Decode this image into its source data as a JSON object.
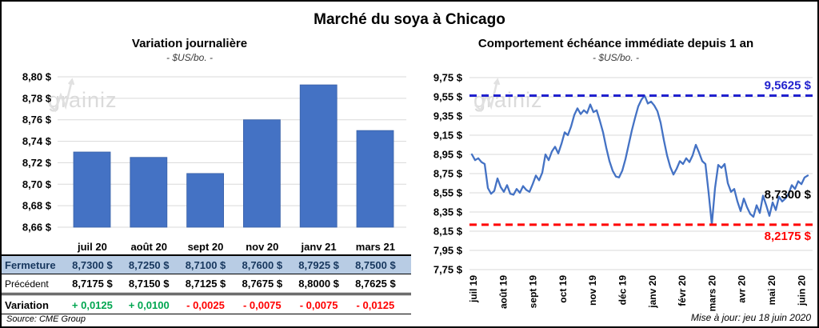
{
  "title": "Marché du soya à Chicago",
  "watermark_text": {
    "part1": "grain",
    "part2": "iz"
  },
  "left_panel": {
    "title": "Variation journalière",
    "subtitle": "- $US/bo. -",
    "source": "Source: CME Group",
    "table": {
      "columns": [
        "juil 20",
        "août 20",
        "sept 20",
        "nov 20",
        "janv 21",
        "mars 21"
      ],
      "rows": [
        {
          "key": "fermeture",
          "label": "Fermeture",
          "values": [
            "8,7300 $",
            "8,7250 $",
            "8,7100 $",
            "8,7600 $",
            "8,7925 $",
            "8,7500 $"
          ]
        },
        {
          "key": "precedent",
          "label": "Précédent",
          "values": [
            "8,7175 $",
            "8,7150 $",
            "8,7125 $",
            "8,7675 $",
            "8,8000 $",
            "8,7625 $"
          ]
        },
        {
          "key": "variation",
          "label": "Variation",
          "values": [
            "+ 0,0125",
            "+ 0,0100",
            "- 0,0025",
            "- 0,0075",
            "- 0,0075",
            "- 0,0125"
          ]
        }
      ]
    }
  },
  "right_panel": {
    "title": "Comportement échéance immédiate depuis 1 an",
    "subtitle": "- $US/bo. -",
    "updated": "Mise à jour: jeu 18 juin 2020"
  },
  "chart_data": [
    {
      "type": "bar",
      "title": "Variation journalière",
      "subtitle": "- $US/bo. -",
      "categories": [
        "juil 20",
        "août 20",
        "sept 20",
        "nov 20",
        "janv 21",
        "mars 21"
      ],
      "values": [
        8.73,
        8.725,
        8.71,
        8.76,
        8.7925,
        8.75
      ],
      "ylabel": "$US/bo.",
      "ylim": [
        8.66,
        8.8
      ],
      "ytick_step": 0.02,
      "grid": true,
      "legend": false
    },
    {
      "type": "line",
      "title": "Comportement échéance immédiate depuis 1 an",
      "subtitle": "- $US/bo. -",
      "x_labels": [
        "juil 19",
        "août 19",
        "sept 19",
        "oct 19",
        "nov 19",
        "déc 19",
        "janv 20",
        "févr 20",
        "mars 20",
        "avr 20",
        "mai 20",
        "juin 20"
      ],
      "ylabel": "$US/bo.",
      "ylim": [
        7.75,
        9.75
      ],
      "ytick_step": 0.2,
      "grid": true,
      "legend": false,
      "values": [
        8.95,
        8.89,
        8.91,
        8.87,
        8.85,
        8.6,
        8.54,
        8.57,
        8.7,
        8.61,
        8.56,
        8.63,
        8.54,
        8.53,
        8.59,
        8.55,
        8.62,
        8.58,
        8.56,
        8.64,
        8.73,
        8.68,
        8.76,
        8.95,
        8.89,
        8.98,
        9.03,
        8.96,
        9.06,
        9.18,
        9.15,
        9.24,
        9.36,
        9.43,
        9.37,
        9.41,
        9.38,
        9.47,
        9.39,
        9.41,
        9.3,
        9.18,
        9.02,
        8.88,
        8.78,
        8.72,
        8.71,
        8.78,
        8.9,
        9.05,
        9.2,
        9.33,
        9.45,
        9.52,
        9.5625,
        9.48,
        9.5,
        9.46,
        9.4,
        9.28,
        9.1,
        8.94,
        8.82,
        8.74,
        8.8,
        8.88,
        8.85,
        8.91,
        8.87,
        8.94,
        9.05,
        8.97,
        8.88,
        8.85,
        8.55,
        8.2175,
        8.6,
        8.84,
        8.81,
        8.85,
        8.65,
        8.56,
        8.59,
        8.46,
        8.36,
        8.49,
        8.4,
        8.33,
        8.3,
        8.42,
        8.34,
        8.52,
        8.42,
        8.31,
        8.45,
        8.37,
        8.51,
        8.46,
        8.49,
        8.54,
        8.63,
        8.59,
        8.67,
        8.64,
        8.71,
        8.73
      ],
      "annotations": [
        {
          "text": "9,5625 $",
          "value": 9.5625,
          "line": true,
          "side": "above",
          "color": "#2121CE"
        },
        {
          "text": "8,2175 $",
          "value": 8.2175,
          "line": true,
          "side": "below",
          "color": "#FF0000"
        },
        {
          "text": "8,7300 $",
          "value": 8.73,
          "line": false,
          "side": "free",
          "color": "#000000",
          "label_at": 8.49
        }
      ]
    }
  ],
  "colors": {
    "accent_blue": "#4472C4",
    "bar_stroke": "#3A62A8",
    "dashed_blue": "#2121CE",
    "negative_red": "#FF0000",
    "positive_green": "#00A650",
    "table_row_blue": "#B8CCE4",
    "table_text_navy": "#17375E",
    "gridline": "#D9D9D9",
    "watermark": "#D8D8D8"
  }
}
